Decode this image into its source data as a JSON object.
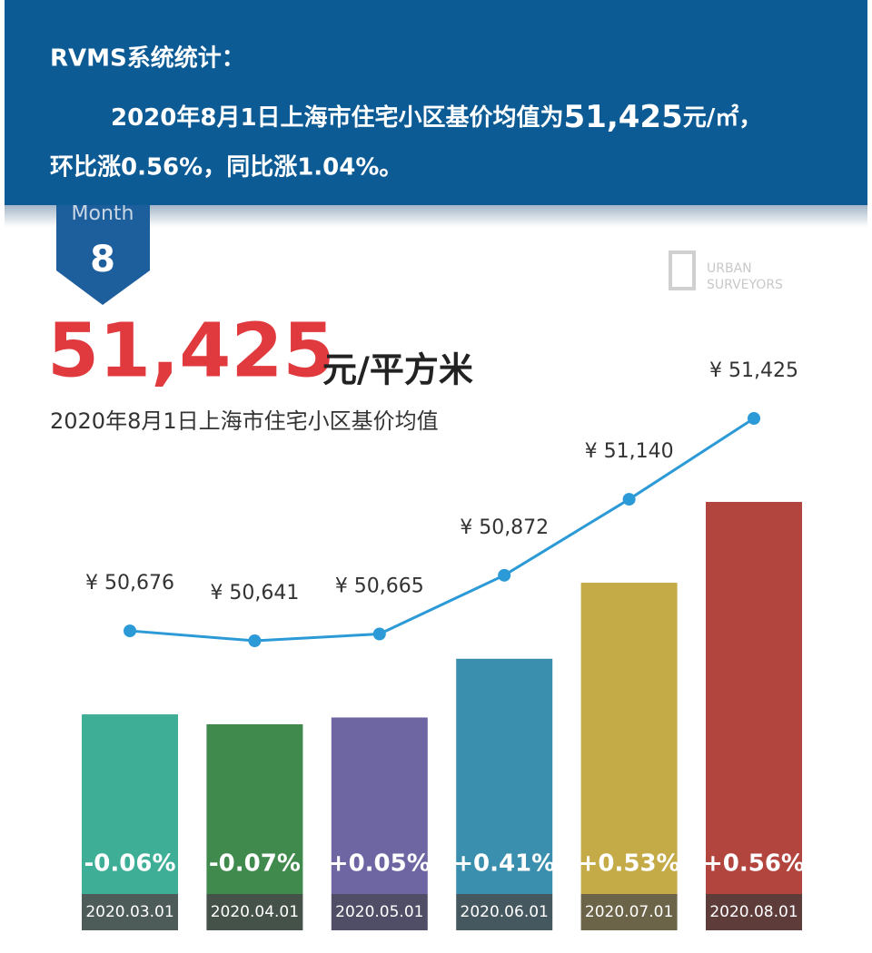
{
  "header": {
    "title": "RVMS系统统计：",
    "line1": {
      "prefix": "2020年8月1日上海市住宅小区基价均值为",
      "emphasis": "51,425",
      "suffix": "元/㎡，"
    },
    "line2": "环比涨0.56%，同比涨1.04%。"
  },
  "badge": {
    "label": "Month",
    "number": "8"
  },
  "logo": {
    "lines": [
      "URBAN",
      "SURVEYORS"
    ]
  },
  "headline": {
    "value": "51,425",
    "unit": "元/平方米",
    "subtitle": "2020年8月1日上海市住宅小区基价均值"
  },
  "chart_data": {
    "type": "line",
    "categories": [
      "2020.03.01",
      "2020.04.01",
      "2020.05.01",
      "2020.06.01",
      "2020.07.01",
      "2020.08.01"
    ],
    "values": [
      50676,
      50641,
      50665,
      50872,
      51140,
      51425
    ],
    "value_labels": [
      "¥ 50,676",
      "¥ 50,641",
      "¥ 50,665",
      "¥ 50,872",
      "¥ 51,140",
      "¥ 51,425"
    ],
    "color": "#2b9ad6",
    "bar_colors": [
      "#3fae97",
      "#3f8a4c",
      "#6d66a2",
      "#3b8fae",
      "#c4ab47",
      "#b3453f"
    ],
    "date_band_colors": [
      "#4d5c58",
      "#45524a",
      "#504d66",
      "#45585f",
      "#6b6448",
      "#5e3c3a"
    ],
    "changes": [
      -0.06,
      -0.07,
      0.05,
      0.41,
      0.53,
      0.56
    ],
    "change_labels": [
      "-0.06%",
      "-0.07%",
      "+0.05%",
      "+0.41%",
      "+0.53%",
      "+0.56%"
    ]
  }
}
